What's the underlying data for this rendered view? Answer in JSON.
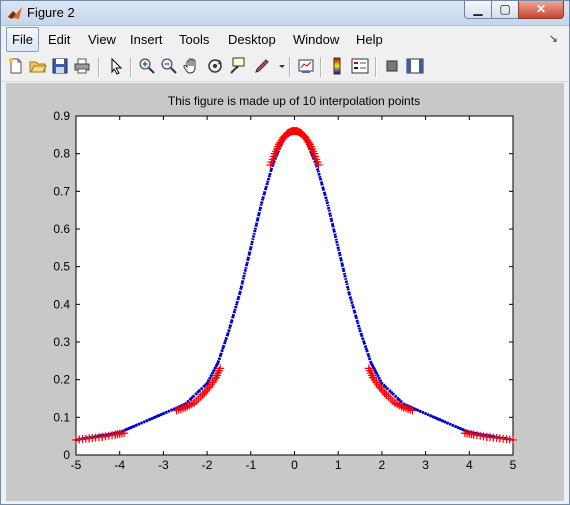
{
  "window": {
    "title": "Figure 2"
  },
  "window_buttons": {
    "minimize": "▁",
    "maximize": "▢",
    "close": "✕"
  },
  "menu": [
    {
      "label": "File"
    },
    {
      "label": "Edit"
    },
    {
      "label": "View"
    },
    {
      "label": "Insert"
    },
    {
      "label": "Tools"
    },
    {
      "label": "Desktop"
    },
    {
      "label": "Window"
    },
    {
      "label": "Help"
    }
  ],
  "toolbar": {
    "icons": [
      "new-figure-icon",
      "open-file-icon",
      "save-icon",
      "print-icon",
      "select-arrow-icon",
      "zoom-in-icon",
      "zoom-out-icon",
      "pan-hand-icon",
      "rotate-3d-icon",
      "data-cursor-icon",
      "brush-icon",
      "dropdown-arrow-icon",
      "link-plot-icon",
      "colorbar-icon",
      "legend-icon",
      "hide-plot-tools-icon",
      "show-plot-tools-icon"
    ]
  },
  "colors": {
    "line": "#0000cc",
    "markers": "#ff0000",
    "figure_bg": "#c8c8c8",
    "axes_bg": "#ffffff"
  },
  "chart_data": {
    "type": "line",
    "title": "This figure is made up of 10 interpolation points",
    "xlabel": "",
    "ylabel": "",
    "xlim": [
      -5,
      5
    ],
    "ylim": [
      0,
      0.9
    ],
    "xticks": [
      -5,
      -4,
      -3,
      -2,
      -1,
      0,
      1,
      2,
      3,
      4,
      5
    ],
    "yticks": [
      0,
      0.1,
      0.2,
      0.3,
      0.4,
      0.5,
      0.6,
      0.7,
      0.8,
      0.9
    ],
    "xtick_labels": [
      "-5",
      "-4",
      "-3",
      "-2",
      "-1",
      "0",
      "1",
      "2",
      "3",
      "4",
      "5"
    ],
    "ytick_labels": [
      "0",
      "0.1",
      "0.2",
      "0.3",
      "0.4",
      "0.5",
      "0.6",
      "0.7",
      "0.8",
      "0.9"
    ],
    "grid": false,
    "series": [
      {
        "style": "blue dotted line",
        "x": [
          -5,
          -4.5,
          -4,
          -3.5,
          -3,
          -2.5,
          -2,
          -1.75,
          -1.5,
          -1.25,
          -1,
          -0.75,
          -0.5,
          -0.25,
          0,
          0.25,
          0.5,
          0.75,
          1,
          1.25,
          1.5,
          1.75,
          2,
          2.5,
          3,
          3.5,
          4,
          4.5,
          5
        ],
        "y": [
          0.04,
          0.05,
          0.06,
          0.085,
          0.11,
          0.135,
          0.19,
          0.245,
          0.33,
          0.43,
          0.55,
          0.67,
          0.77,
          0.84,
          0.86,
          0.84,
          0.77,
          0.67,
          0.55,
          0.43,
          0.33,
          0.245,
          0.19,
          0.135,
          0.11,
          0.085,
          0.06,
          0.05,
          0.04
        ]
      },
      {
        "style": "red plus markers",
        "segments": [
          {
            "x": [
              -5,
              -4.7,
              -4.4,
              -4.1,
              -3.9
            ],
            "y": [
              0.04,
              0.044,
              0.048,
              0.054,
              0.058
            ]
          },
          {
            "x": [
              -2.7,
              -2.5,
              -2.3,
              -2.1,
              -1.95,
              -1.8,
              -1.7
            ],
            "y": [
              0.118,
              0.126,
              0.138,
              0.16,
              0.18,
              0.205,
              0.23
            ]
          },
          {
            "x": [
              -0.55,
              -0.45,
              -0.35,
              -0.25,
              -0.15,
              -0.05,
              0.05,
              0.15,
              0.25,
              0.35,
              0.45,
              0.55
            ],
            "y": [
              0.77,
              0.8,
              0.825,
              0.843,
              0.855,
              0.86,
              0.86,
              0.855,
              0.843,
              0.825,
              0.8,
              0.77
            ]
          },
          {
            "x": [
              1.7,
              1.8,
              1.95,
              2.1,
              2.3,
              2.5,
              2.7
            ],
            "y": [
              0.23,
              0.205,
              0.18,
              0.16,
              0.138,
              0.126,
              0.118
            ]
          },
          {
            "x": [
              3.9,
              4.1,
              4.4,
              4.7,
              5
            ],
            "y": [
              0.058,
              0.054,
              0.048,
              0.044,
              0.04
            ]
          }
        ]
      }
    ]
  }
}
